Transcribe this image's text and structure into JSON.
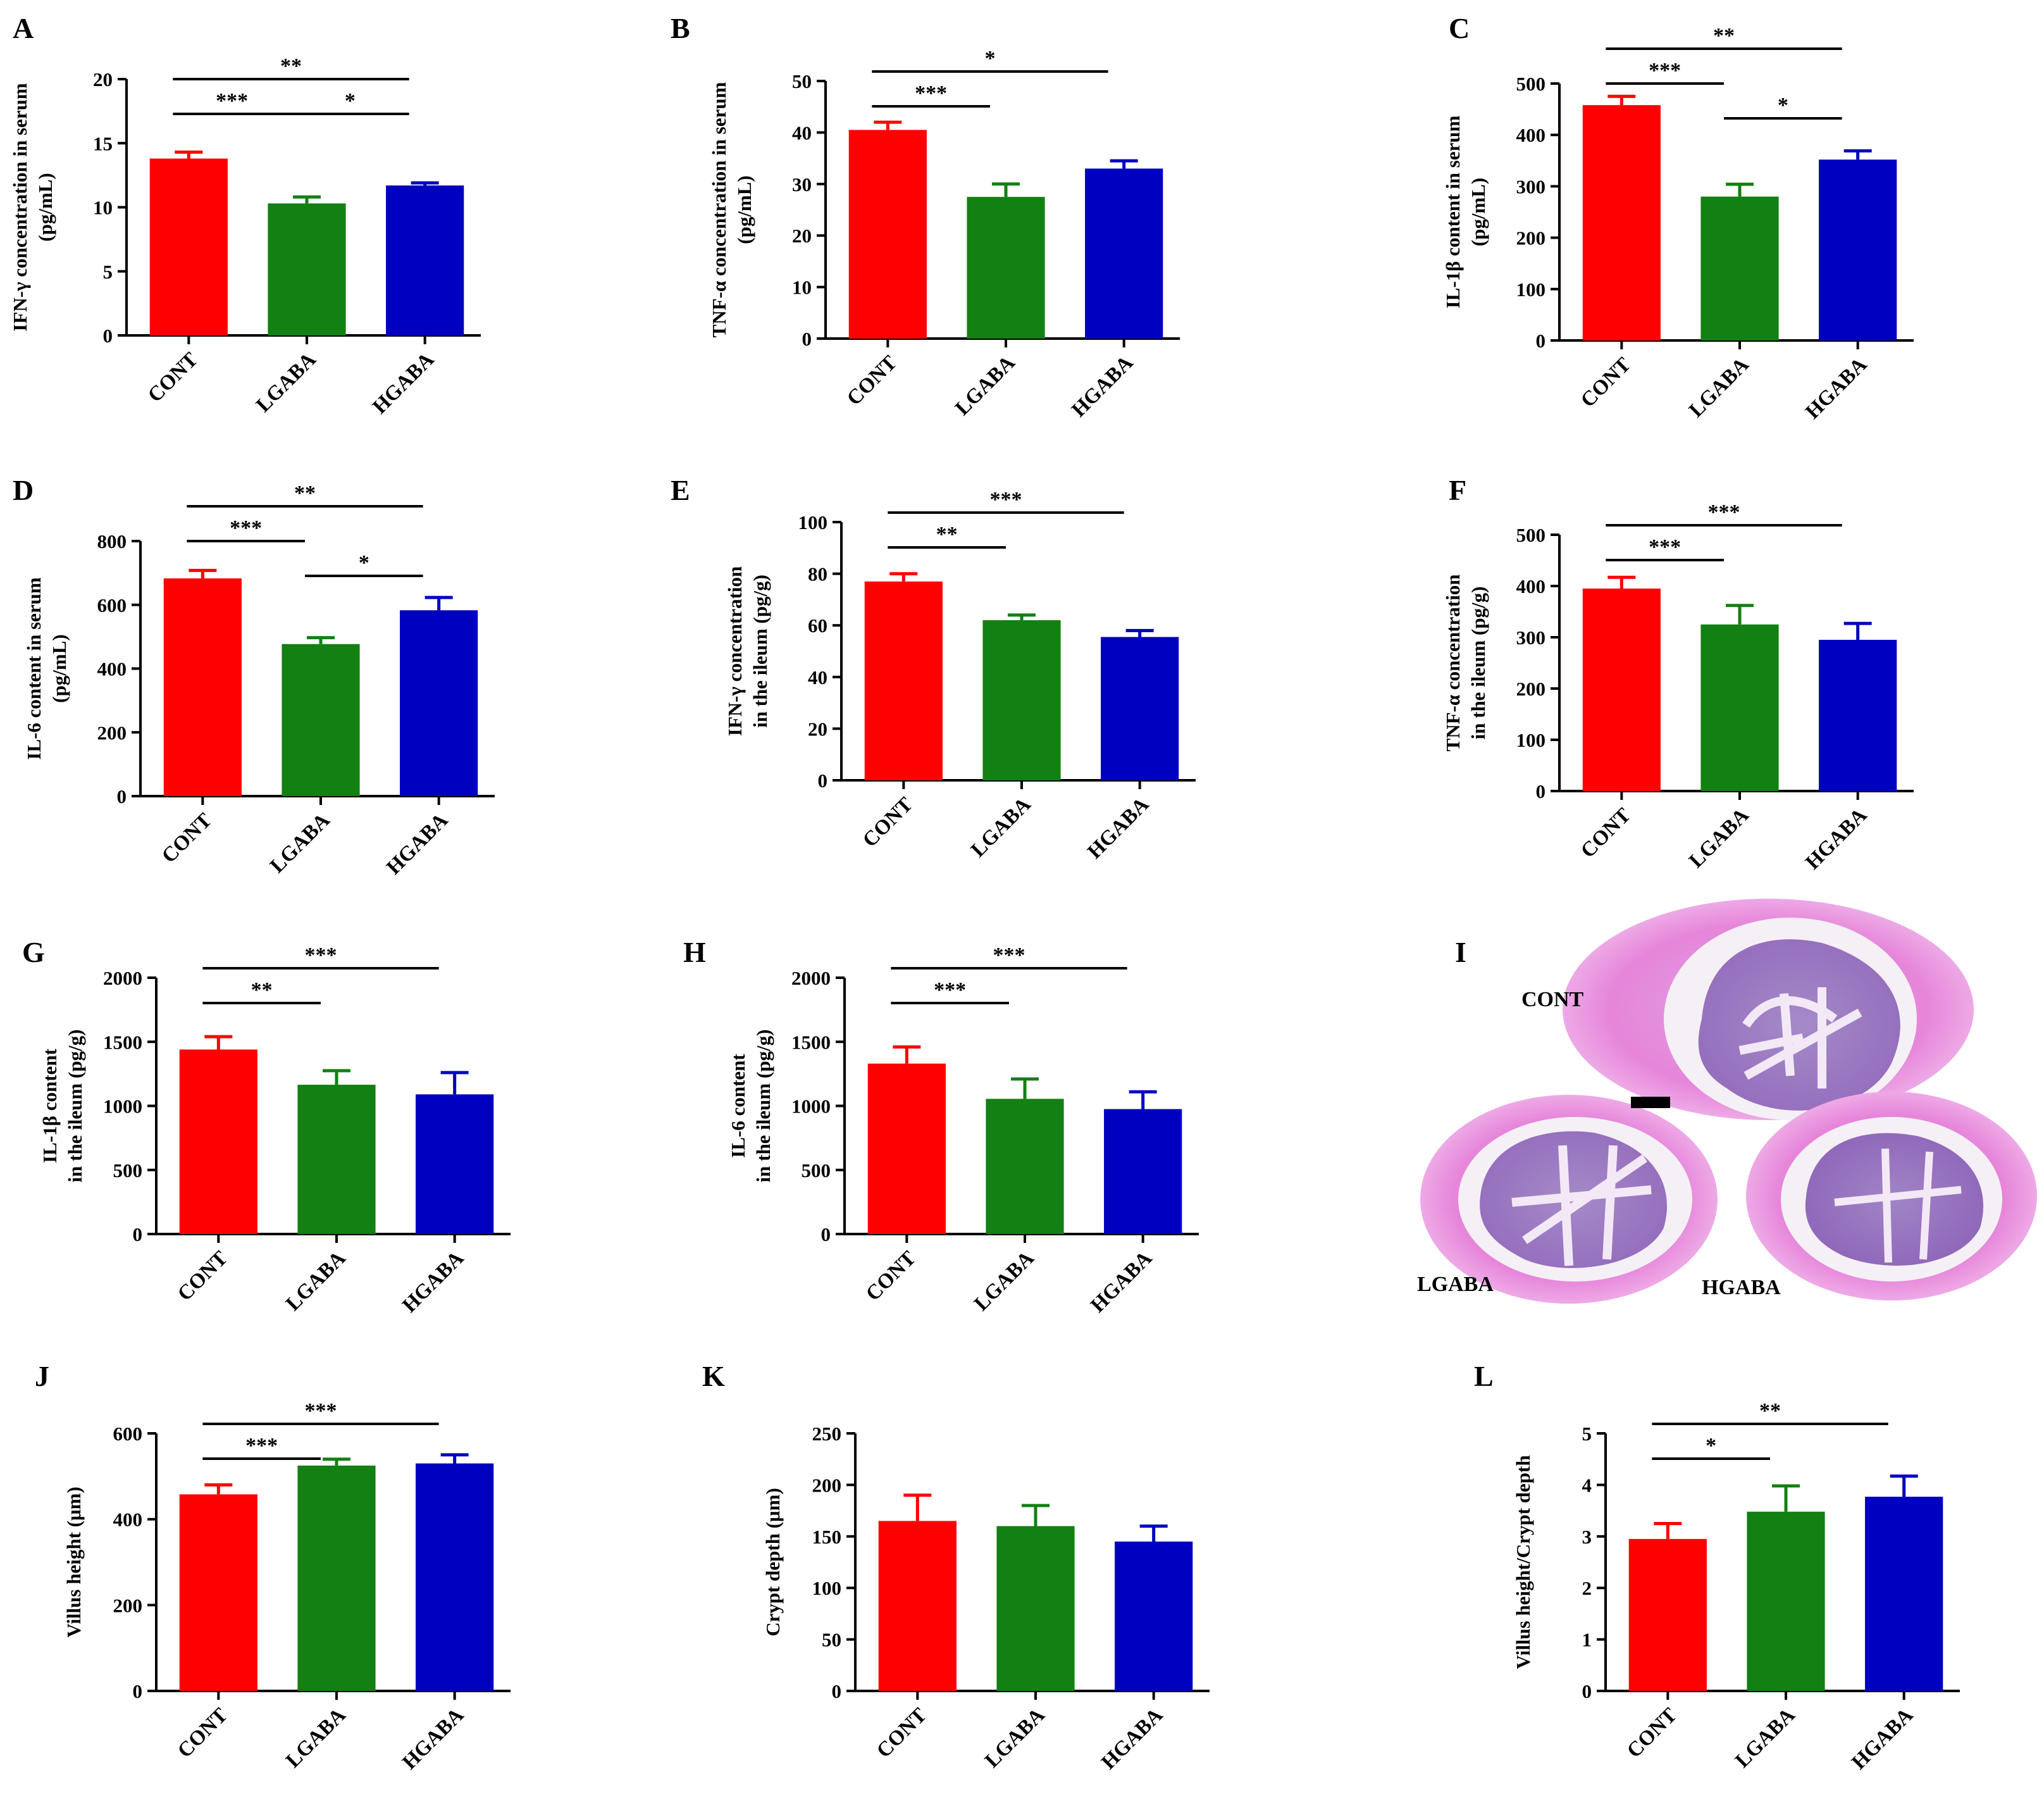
{
  "colors": {
    "CONT": "#ff0000",
    "LGABA": "#128012",
    "HGABA": "#0000c0"
  },
  "histology": {
    "letter": "I",
    "labels": [
      "CONT",
      "LGABA",
      "HGABA"
    ]
  },
  "chart_data": [
    {
      "id": "A",
      "type": "bar",
      "categories": [
        "CONT",
        "LGABA",
        "HGABA"
      ],
      "values": [
        13.8,
        10.3,
        11.7
      ],
      "errors": [
        0.5,
        0.5,
        0.2
      ],
      "ylabel": [
        "IFN-γ concentration in serum",
        "(pg/mL)"
      ],
      "ylim": [
        0,
        20
      ],
      "ticks": [
        0,
        5,
        10,
        15,
        20
      ],
      "sig": [
        {
          "from": 0,
          "to": 1,
          "label": "***",
          "row": 0
        },
        {
          "from": 1,
          "to": 2,
          "label": "*",
          "row": 0
        },
        {
          "from": 0,
          "to": 2,
          "label": "**",
          "row": 1
        }
      ]
    },
    {
      "id": "B",
      "type": "bar",
      "categories": [
        "CONT",
        "LGABA",
        "HGABA"
      ],
      "values": [
        40.5,
        27.5,
        33
      ],
      "errors": [
        1.5,
        2.5,
        1.5
      ],
      "ylabel": [
        "TNF-α concentration in serum",
        "(pg/mL)"
      ],
      "ylim": [
        0,
        50
      ],
      "ticks": [
        0,
        10,
        20,
        30,
        40,
        50
      ],
      "sig": [
        {
          "from": 0,
          "to": 1,
          "label": "***",
          "row": 0
        },
        {
          "from": 0,
          "to": 2,
          "label": "*",
          "row": 1
        }
      ]
    },
    {
      "id": "C",
      "type": "bar",
      "categories": [
        "CONT",
        "LGABA",
        "HGABA"
      ],
      "values": [
        458,
        280,
        352
      ],
      "errors": [
        17,
        24,
        17
      ],
      "ylabel": [
        "IL-1β content in serum",
        "(pg/mL)"
      ],
      "ylim": [
        0,
        500
      ],
      "ticks": [
        0,
        100,
        200,
        300,
        400,
        500
      ],
      "sig": [
        {
          "from": 0,
          "to": 1,
          "label": "***",
          "row": 1
        },
        {
          "from": 1,
          "to": 2,
          "label": "*",
          "row": 0
        },
        {
          "from": 0,
          "to": 2,
          "label": "**",
          "row": 2
        }
      ]
    },
    {
      "id": "D",
      "type": "bar",
      "categories": [
        "CONT",
        "LGABA",
        "HGABA"
      ],
      "values": [
        683,
        477,
        583
      ],
      "errors": [
        25,
        20,
        40
      ],
      "ylabel": [
        "IL-6 content in serum",
        "(pg/mL)"
      ],
      "ylim": [
        0,
        800
      ],
      "ticks": [
        0,
        200,
        400,
        600,
        800
      ],
      "sig": [
        {
          "from": 0,
          "to": 1,
          "label": "***",
          "row": 1
        },
        {
          "from": 1,
          "to": 2,
          "label": "*",
          "row": 0
        },
        {
          "from": 0,
          "to": 2,
          "label": "**",
          "row": 2
        }
      ]
    },
    {
      "id": "E",
      "type": "bar",
      "categories": [
        "CONT",
        "LGABA",
        "HGABA"
      ],
      "values": [
        77,
        62,
        55.5
      ],
      "errors": [
        3,
        2,
        2.5
      ],
      "ylabel": [
        "IFN-γ concentration",
        "in the ileum (pg/g)"
      ],
      "ylim": [
        0,
        100
      ],
      "ticks": [
        0,
        20,
        40,
        60,
        80,
        100
      ],
      "sig": [
        {
          "from": 0,
          "to": 1,
          "label": "**",
          "row": 0
        },
        {
          "from": 0,
          "to": 2,
          "label": "***",
          "row": 1
        }
      ]
    },
    {
      "id": "F",
      "type": "bar",
      "categories": [
        "CONT",
        "LGABA",
        "HGABA"
      ],
      "values": [
        395,
        325,
        295
      ],
      "errors": [
        22,
        37,
        32
      ],
      "ylabel": [
        "TNF-α concentration",
        "in the ileum (pg/g)"
      ],
      "ylim": [
        0,
        500
      ],
      "ticks": [
        0,
        100,
        200,
        300,
        400,
        500
      ],
      "sig": [
        {
          "from": 0,
          "to": 1,
          "label": "***",
          "row": 0
        },
        {
          "from": 0,
          "to": 2,
          "label": "***",
          "row": 1
        }
      ]
    },
    {
      "id": "G",
      "type": "bar",
      "categories": [
        "CONT",
        "LGABA",
        "HGABA"
      ],
      "values": [
        1440,
        1165,
        1090
      ],
      "errors": [
        100,
        110,
        170
      ],
      "ylabel": [
        "IL-1β content",
        "in the ileum (pg/g)"
      ],
      "ylim": [
        0,
        2000
      ],
      "ticks": [
        0,
        500,
        1000,
        1500,
        2000
      ],
      "sig": [
        {
          "from": 0,
          "to": 1,
          "label": "**",
          "row": 0
        },
        {
          "from": 0,
          "to": 2,
          "label": "***",
          "row": 1
        }
      ]
    },
    {
      "id": "H",
      "type": "bar",
      "categories": [
        "CONT",
        "LGABA",
        "HGABA"
      ],
      "values": [
        1330,
        1055,
        975
      ],
      "errors": [
        130,
        155,
        135
      ],
      "ylabel": [
        "IL-6 content",
        "in the ileum (pg/g)"
      ],
      "ylim": [
        0,
        2000
      ],
      "ticks": [
        0,
        500,
        1000,
        1500,
        2000
      ],
      "sig": [
        {
          "from": 0,
          "to": 1,
          "label": "***",
          "row": 0
        },
        {
          "from": 0,
          "to": 2,
          "label": "***",
          "row": 1
        }
      ]
    },
    {
      "id": "J",
      "type": "bar",
      "categories": [
        "CONT",
        "LGABA",
        "HGABA"
      ],
      "values": [
        458,
        525,
        530
      ],
      "errors": [
        22,
        15,
        20
      ],
      "ylabel": [
        "Villus height (μm)"
      ],
      "ylim": [
        0,
        600
      ],
      "ticks": [
        0,
        200,
        400,
        600
      ],
      "sig": [
        {
          "from": 0,
          "to": 1,
          "label": "***",
          "row": 0
        },
        {
          "from": 0,
          "to": 2,
          "label": "***",
          "row": 1
        }
      ]
    },
    {
      "id": "K",
      "type": "bar",
      "categories": [
        "CONT",
        "LGABA",
        "HGABA"
      ],
      "values": [
        165,
        160,
        145
      ],
      "errors": [
        25,
        20,
        15
      ],
      "ylabel": [
        "Crypt depth (μm)"
      ],
      "ylim": [
        0,
        250
      ],
      "ticks": [
        0,
        50,
        100,
        150,
        200,
        250
      ],
      "sig": []
    },
    {
      "id": "L",
      "type": "bar",
      "categories": [
        "CONT",
        "LGABA",
        "HGABA"
      ],
      "values": [
        2.95,
        3.48,
        3.77
      ],
      "errors": [
        0.3,
        0.5,
        0.4
      ],
      "ylabel": [
        "Villus height/Crypt depth"
      ],
      "ylim": [
        0,
        5
      ],
      "ticks": [
        0,
        1,
        2,
        3,
        4,
        5
      ],
      "sig": [
        {
          "from": 0,
          "to": 1,
          "label": "*",
          "row": 0
        },
        {
          "from": 0,
          "to": 2,
          "label": "**",
          "row": 1
        }
      ]
    }
  ]
}
